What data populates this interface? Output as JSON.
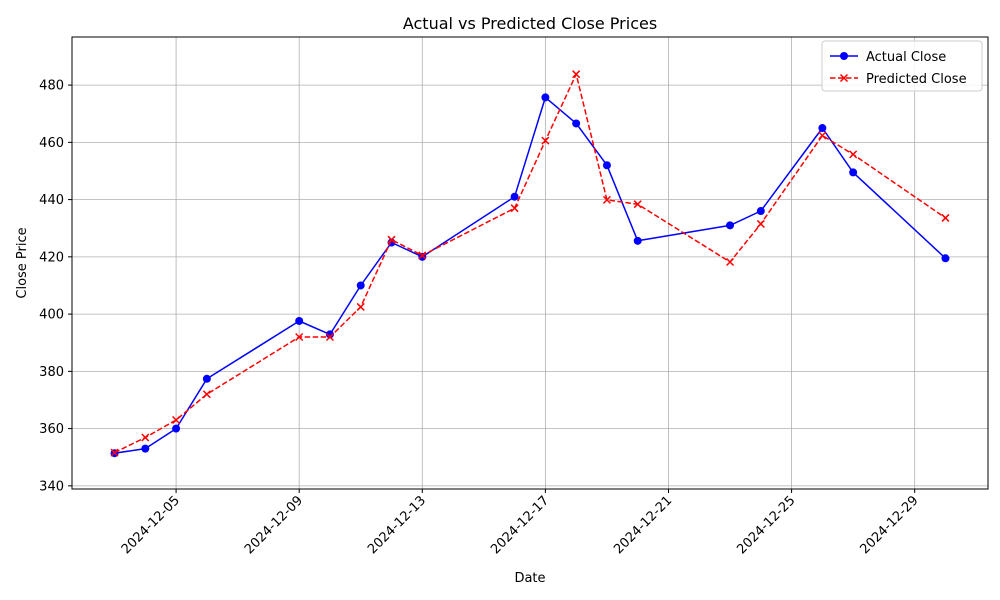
{
  "chart_data": {
    "type": "line",
    "title": "Actual vs Predicted Close Prices",
    "xlabel": "Date",
    "ylabel": "Close Price",
    "xlim": [
      "2024-12-01T14:50",
      "2024-12-31T09:10"
    ],
    "ylim": [
      338.9,
      496.8
    ],
    "x_ticks": [
      "2024-12-05",
      "2024-12-09",
      "2024-12-13",
      "2024-12-17",
      "2024-12-21",
      "2024-12-25",
      "2024-12-29"
    ],
    "y_ticks": [
      340,
      360,
      380,
      400,
      420,
      440,
      460,
      480
    ],
    "grid": true,
    "legend_position": "upper right",
    "x": [
      "2024-12-03",
      "2024-12-04",
      "2024-12-05",
      "2024-12-06",
      "2024-12-09",
      "2024-12-10",
      "2024-12-11",
      "2024-12-12",
      "2024-12-13",
      "2024-12-16",
      "2024-12-17",
      "2024-12-18",
      "2024-12-19",
      "2024-12-20",
      "2024-12-23",
      "2024-12-24",
      "2024-12-26",
      "2024-12-27",
      "2024-12-30"
    ],
    "series": [
      {
        "name": "Actual Close",
        "color": "#0000ff",
        "linestyle": "solid",
        "marker": "circle",
        "values": [
          351.4,
          353.0,
          360.0,
          377.4,
          397.6,
          392.9,
          410.0,
          425.0,
          420.0,
          441.0,
          475.7,
          466.6,
          452.0,
          425.6,
          431.0,
          436.0,
          465.0,
          449.5,
          419.5
        ]
      },
      {
        "name": "Predicted Close",
        "color": "#ff0000",
        "linestyle": "dashed",
        "marker": "x",
        "values": [
          351.6,
          356.9,
          363.0,
          372.0,
          392.0,
          392.0,
          402.5,
          426.0,
          420.5,
          437.0,
          460.6,
          483.8,
          439.9,
          438.4,
          418.2,
          431.5,
          462.4,
          455.8,
          433.6
        ]
      }
    ]
  }
}
